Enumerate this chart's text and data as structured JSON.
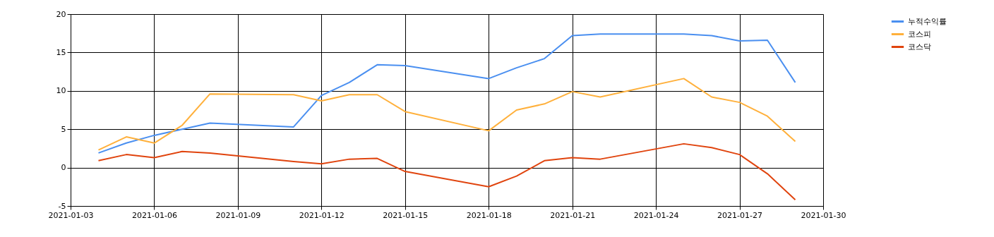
{
  "chart_data": {
    "type": "line",
    "x": [
      "2021-01-04",
      "2021-01-05",
      "2021-01-06",
      "2021-01-07",
      "2021-01-08",
      "2021-01-11",
      "2021-01-12",
      "2021-01-13",
      "2021-01-14",
      "2021-01-15",
      "2021-01-18",
      "2021-01-19",
      "2021-01-20",
      "2021-01-21",
      "2021-01-22",
      "2021-01-25",
      "2021-01-26",
      "2021-01-27",
      "2021-01-28",
      "2021-01-29"
    ],
    "series": [
      {
        "name": "누적수익률",
        "color": "#4a8ff0",
        "values": [
          1.9,
          3.2,
          4.2,
          5.0,
          5.8,
          5.3,
          9.4,
          11.1,
          13.4,
          13.3,
          11.6,
          13.0,
          14.2,
          17.2,
          17.4,
          17.4,
          17.2,
          16.5,
          16.6,
          11.1
        ]
      },
      {
        "name": "코스피",
        "color": "#ffb03b",
        "values": [
          2.3,
          4.0,
          3.2,
          5.5,
          9.6,
          9.5,
          8.7,
          9.5,
          9.5,
          7.3,
          4.8,
          7.5,
          8.3,
          9.9,
          9.2,
          11.6,
          9.2,
          8.5,
          6.7,
          3.4
        ]
      },
      {
        "name": "코스닥",
        "color": "#e0440e",
        "values": [
          0.9,
          1.7,
          1.3,
          2.1,
          1.9,
          0.8,
          0.5,
          1.1,
          1.2,
          -0.5,
          -2.5,
          -1.1,
          0.9,
          1.3,
          1.1,
          3.1,
          2.6,
          1.7,
          -0.8,
          -4.2
        ]
      }
    ],
    "xlim": [
      "2021-01-03",
      "2021-01-30"
    ],
    "xticks": [
      "2021-01-03",
      "2021-01-06",
      "2021-01-09",
      "2021-01-12",
      "2021-01-15",
      "2021-01-18",
      "2021-01-21",
      "2021-01-24",
      "2021-01-27",
      "2021-01-30"
    ],
    "ylim": [
      -5,
      20
    ],
    "yticks": [
      -5,
      0,
      5,
      10,
      15,
      20
    ],
    "grid": true,
    "legend": "top right",
    "marker": "none",
    "line_style": "solid"
  }
}
